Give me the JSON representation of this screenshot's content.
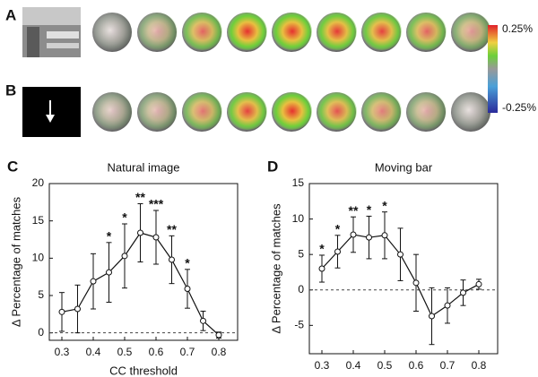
{
  "figure": {
    "panels": [
      "A",
      "B"
    ]
  },
  "colorbar": {
    "max_label": "0.25%",
    "min_label": "-0.25%"
  },
  "chart_data": [
    {
      "type": "line",
      "panel_label": "C",
      "title": "Natural image",
      "x_label": "CC threshold",
      "y_label": "Δ Percentage of matches",
      "x": [
        0.3,
        0.35,
        0.4,
        0.45,
        0.5,
        0.55,
        0.6,
        0.65,
        0.7,
        0.75,
        0.8
      ],
      "series": [
        {
          "name": "Natural image",
          "color": "#111111",
          "values": [
            2.8,
            3.2,
            6.9,
            8.1,
            10.3,
            13.4,
            12.8,
            9.8,
            5.9,
            1.6,
            -0.3
          ],
          "errors": [
            2.6,
            3.2,
            3.7,
            4.0,
            4.3,
            3.9,
            3.6,
            3.2,
            2.6,
            1.3,
            0.4
          ]
        }
      ],
      "annotations": [
        {
          "x": 0.45,
          "text": "*"
        },
        {
          "x": 0.5,
          "text": "*"
        },
        {
          "x": 0.55,
          "text": "**"
        },
        {
          "x": 0.6,
          "text": "***"
        },
        {
          "x": 0.65,
          "text": "**"
        },
        {
          "x": 0.7,
          "text": "*"
        }
      ],
      "reference_line": 0,
      "xlim": [
        0.26,
        0.86
      ],
      "xticks": [
        0.3,
        0.4,
        0.5,
        0.6,
        0.7,
        0.8
      ],
      "ylim": [
        -1,
        20
      ],
      "yticks": [
        0,
        5,
        10,
        15,
        20
      ]
    },
    {
      "type": "line",
      "panel_label": "D",
      "title": "Moving bar",
      "x_label": "CC threshold",
      "y_label": "Δ Percentage of matches",
      "x": [
        0.3,
        0.35,
        0.4,
        0.45,
        0.5,
        0.55,
        0.6,
        0.65,
        0.7,
        0.75,
        0.8
      ],
      "series": [
        {
          "name": "Moving bar",
          "color": "#111111",
          "values": [
            3.0,
            5.4,
            7.8,
            7.4,
            7.7,
            5.0,
            1.0,
            -3.7,
            -2.2,
            -0.4,
            0.8
          ],
          "errors": [
            1.9,
            2.3,
            2.5,
            3.0,
            3.3,
            3.7,
            4.0,
            4.0,
            2.5,
            1.8,
            0.7
          ]
        }
      ],
      "annotations": [
        {
          "x": 0.3,
          "text": "*"
        },
        {
          "x": 0.35,
          "text": "*"
        },
        {
          "x": 0.4,
          "text": "**"
        },
        {
          "x": 0.45,
          "text": "*"
        },
        {
          "x": 0.5,
          "text": "*"
        }
      ],
      "reference_line": 0,
      "xlim": [
        0.26,
        0.86
      ],
      "xticks": [
        0.3,
        0.4,
        0.5,
        0.6,
        0.7,
        0.8
      ],
      "ylim": [
        -9,
        15
      ],
      "yticks": [
        -5,
        0,
        5,
        10,
        15
      ]
    }
  ]
}
